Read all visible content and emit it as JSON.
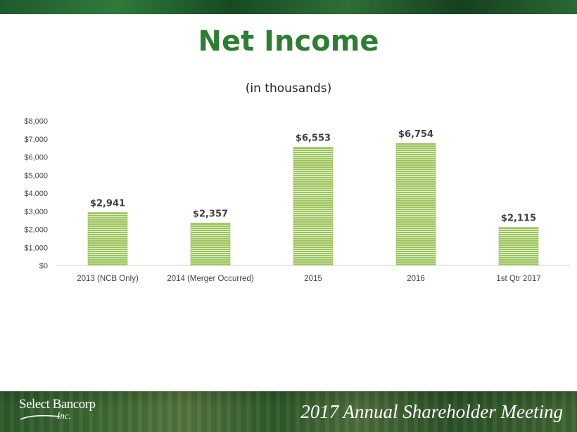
{
  "header": {
    "title": "Net Income",
    "subtitle": "(in thousands)"
  },
  "footer": {
    "logo_main": "Select Bancorp",
    "logo_sub": "Inc.",
    "meeting": "2017 Annual Shareholder Meeting"
  },
  "colors": {
    "title": "#2e7d32",
    "bar": "#9bc45a",
    "bar_stripe": "#e8f2d6",
    "axis_text": "#444444"
  },
  "chart_data": {
    "type": "bar",
    "categories": [
      "2013 (NCB Only)",
      "2014 (Merger Occurred)",
      "2015",
      "2016",
      "1st Qtr 2017"
    ],
    "values": [
      2941,
      2357,
      6553,
      6754,
      2115
    ],
    "data_labels": [
      "$2,941",
      "$2,357",
      "$6,553",
      "$6,754",
      "$2,115"
    ],
    "title": "Net Income",
    "subtitle": "(in thousands)",
    "xlabel": "",
    "ylabel": "",
    "ylim": [
      0,
      8000
    ],
    "yticks": [
      0,
      1000,
      2000,
      3000,
      4000,
      5000,
      6000,
      7000,
      8000
    ],
    "ytick_labels": [
      "$0",
      "$1,000",
      "$2,000",
      "$3,000",
      "$4,000",
      "$5,000",
      "$6,000",
      "$7,000",
      "$8,000"
    ],
    "grid": false,
    "legend": "none"
  }
}
